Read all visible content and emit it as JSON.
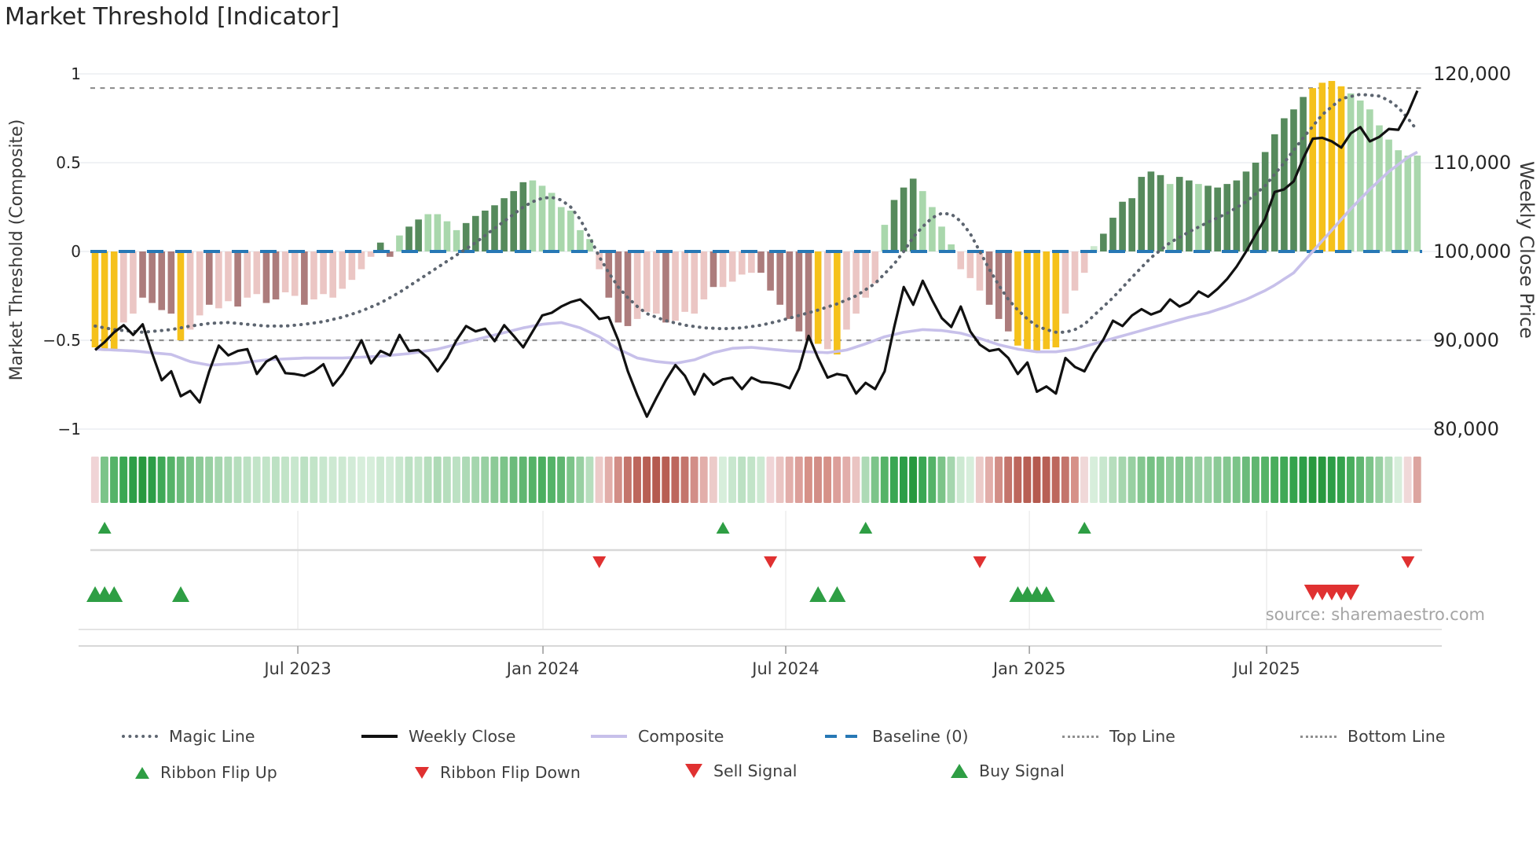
{
  "title": "Market Threshold [Indicator]",
  "source": "source: sharemaestro.com",
  "axes": {
    "left_label": "Market Threshold (Composite)",
    "right_label": "Weekly Close Price",
    "left_ticks": [
      "1",
      "0.5",
      "0",
      "−0.5",
      "−1"
    ],
    "left_tick_values": [
      1,
      0.5,
      0,
      -0.5,
      -1
    ],
    "right_ticks": [
      "120,000",
      "110,000",
      "100,000",
      "90,000",
      "80,000"
    ],
    "right_tick_values": [
      120000,
      110000,
      100000,
      90000,
      80000
    ],
    "x_ticks": [
      "Jul 2023",
      "Jan 2024",
      "Jul 2024",
      "Jan 2025",
      "Jul 2025"
    ],
    "x_tick_index": [
      21.31,
      47.08,
      72.6,
      98.21,
      123.15
    ]
  },
  "colors": {
    "gold": "#F5C11B",
    "pink": "#EBC6C4",
    "mauve": "#AC7C7C",
    "dark_green": "#568A5C",
    "light_green": "#A9D7AC",
    "pale_green": "#CBE8CD",
    "baseline": "#2778B5",
    "composite": "#C7C0EA",
    "magic_line": "#5D6570",
    "weekly_close": "#111111",
    "guide": "#8F8F8F",
    "signal_green": "#2E9E44",
    "signal_red": "#E03131",
    "grid": "#ECEEF2",
    "tick_text": "#262626",
    "x_text": "#3A3A3A",
    "panel_line": "#D8D8D8"
  },
  "chart_data": {
    "type": "combo-bar-line",
    "title": "Market Threshold [Indicator]",
    "left_axis_range": [
      -1,
      1
    ],
    "right_axis_range": [
      80000,
      120000
    ],
    "baseline": 0,
    "top_line": 0.92,
    "bottom_line": -0.5,
    "bar_classes": [
      "g",
      "g",
      "g",
      "p",
      "p",
      "m",
      "m",
      "m",
      "m",
      "g",
      "p",
      "p",
      "m",
      "p",
      "p",
      "m",
      "p",
      "p",
      "m",
      "m",
      "p",
      "p",
      "m",
      "p",
      "p",
      "p",
      "p",
      "p",
      "p",
      "p",
      "d",
      "m",
      "l",
      "d",
      "d",
      "l",
      "l",
      "l",
      "l",
      "d",
      "d",
      "d",
      "d",
      "d",
      "d",
      "d",
      "l",
      "l",
      "l",
      "l",
      "l",
      "l",
      "l",
      "p",
      "m",
      "m",
      "m",
      "p",
      "p",
      "p",
      "m",
      "p",
      "p",
      "p",
      "p",
      "m",
      "p",
      "p",
      "p",
      "p",
      "m",
      "m",
      "m",
      "m",
      "m",
      "m",
      "g",
      "p",
      "g",
      "p",
      "p",
      "p",
      "p",
      "l",
      "d",
      "d",
      "d",
      "l",
      "l",
      "l",
      "l",
      "p",
      "p",
      "p",
      "m",
      "m",
      "m",
      "g",
      "g",
      "g",
      "g",
      "g",
      "p",
      "p",
      "p",
      "e",
      "d",
      "d",
      "d",
      "d",
      "d",
      "d",
      "d",
      "l",
      "d",
      "d",
      "l",
      "d",
      "d",
      "d",
      "d",
      "d",
      "d",
      "d",
      "d",
      "d",
      "d",
      "d",
      "g",
      "g",
      "g",
      "g",
      "l",
      "l",
      "l",
      "l",
      "l",
      "l",
      "l",
      "l"
    ],
    "bar_values": [
      -0.54,
      -0.56,
      -0.55,
      -0.4,
      -0.35,
      -0.26,
      -0.29,
      -0.33,
      -0.35,
      -0.5,
      -0.44,
      -0.36,
      -0.3,
      -0.32,
      -0.28,
      -0.31,
      -0.26,
      -0.24,
      -0.29,
      -0.27,
      -0.23,
      -0.25,
      -0.3,
      -0.27,
      -0.24,
      -0.26,
      -0.21,
      -0.16,
      -0.1,
      -0.03,
      0.05,
      -0.03,
      0.09,
      0.14,
      0.18,
      0.21,
      0.21,
      0.17,
      0.12,
      0.16,
      0.2,
      0.23,
      0.26,
      0.3,
      0.34,
      0.39,
      0.4,
      0.37,
      0.33,
      0.25,
      0.23,
      0.12,
      0.07,
      -0.1,
      -0.26,
      -0.4,
      -0.42,
      -0.38,
      -0.34,
      -0.35,
      -0.4,
      -0.39,
      -0.34,
      -0.35,
      -0.27,
      -0.2,
      -0.2,
      -0.17,
      -0.13,
      -0.12,
      -0.12,
      -0.22,
      -0.3,
      -0.38,
      -0.45,
      -0.5,
      -0.52,
      -0.55,
      -0.58,
      -0.44,
      -0.35,
      -0.26,
      -0.18,
      0.15,
      0.29,
      0.36,
      0.41,
      0.34,
      0.25,
      0.14,
      0.04,
      -0.1,
      -0.15,
      -0.22,
      -0.3,
      -0.38,
      -0.45,
      -0.53,
      -0.55,
      -0.56,
      -0.55,
      -0.54,
      -0.35,
      -0.22,
      -0.12,
      0.03,
      0.1,
      0.19,
      0.28,
      0.3,
      0.42,
      0.45,
      0.43,
      0.38,
      0.42,
      0.4,
      0.38,
      0.37,
      0.36,
      0.38,
      0.4,
      0.45,
      0.5,
      0.56,
      0.66,
      0.75,
      0.8,
      0.87,
      0.92,
      0.95,
      0.96,
      0.93,
      0.89,
      0.85,
      0.8,
      0.71,
      0.63,
      0.57,
      0.54,
      0.54
    ],
    "weekly_close": [
      88900,
      89800,
      90900,
      91700,
      90600,
      91800,
      88500,
      85500,
      86500,
      83700,
      84300,
      83000,
      86500,
      89400,
      88300,
      88800,
      89000,
      86200,
      87600,
      88200,
      86300,
      86200,
      86000,
      86500,
      87300,
      84900,
      86200,
      88000,
      90000,
      87400,
      88800,
      88300,
      90600,
      88800,
      88900,
      88000,
      86500,
      88000,
      90000,
      91600,
      91000,
      91300,
      89900,
      91700,
      90500,
      89200,
      91000,
      92800,
      93100,
      93800,
      94300,
      94600,
      93600,
      92400,
      92600,
      90000,
      86500,
      83800,
      81400,
      83500,
      85500,
      87200,
      86000,
      83900,
      86200,
      85000,
      85600,
      85800,
      84500,
      85800,
      85300,
      85200,
      85000,
      84600,
      86800,
      90500,
      88000,
      85800,
      86200,
      86000,
      84000,
      85200,
      84500,
      86500,
      91500,
      96000,
      94000,
      96700,
      94500,
      92500,
      91500,
      93800,
      91000,
      89500,
      88800,
      89000,
      88000,
      86200,
      87500,
      84200,
      84800,
      84000,
      88000,
      87000,
      86500,
      88500,
      90100,
      92200,
      91600,
      92800,
      93500,
      92900,
      93300,
      94600,
      93800,
      94300,
      95500,
      94900,
      95800,
      96900,
      98300,
      100000,
      101900,
      103700,
      106700,
      107000,
      107900,
      110500,
      112700,
      112800,
      112400,
      111700,
      113300,
      114000,
      112400,
      112900,
      113800,
      113700,
      115600,
      118100
    ],
    "composite_anchors": [
      [
        0,
        -0.55
      ],
      [
        4,
        -0.56
      ],
      [
        8,
        -0.58
      ],
      [
        10,
        -0.62
      ],
      [
        12,
        -0.64
      ],
      [
        15,
        -0.63
      ],
      [
        18,
        -0.61
      ],
      [
        22,
        -0.6
      ],
      [
        26,
        -0.6
      ],
      [
        30,
        -0.59
      ],
      [
        33,
        -0.575
      ],
      [
        36,
        -0.55
      ],
      [
        39,
        -0.51
      ],
      [
        42,
        -0.47
      ],
      [
        45,
        -0.43
      ],
      [
        47,
        -0.41
      ],
      [
        49,
        -0.4
      ],
      [
        51,
        -0.43
      ],
      [
        53,
        -0.48
      ],
      [
        55,
        -0.55
      ],
      [
        57,
        -0.6
      ],
      [
        59,
        -0.62
      ],
      [
        61,
        -0.63
      ],
      [
        63,
        -0.61
      ],
      [
        65,
        -0.57
      ],
      [
        67,
        -0.545
      ],
      [
        69,
        -0.54
      ],
      [
        71,
        -0.55
      ],
      [
        73,
        -0.56
      ],
      [
        75,
        -0.565
      ],
      [
        77,
        -0.57
      ],
      [
        79,
        -0.555
      ],
      [
        81,
        -0.52
      ],
      [
        83,
        -0.48
      ],
      [
        85,
        -0.455
      ],
      [
        87,
        -0.44
      ],
      [
        89,
        -0.445
      ],
      [
        91,
        -0.46
      ],
      [
        93,
        -0.49
      ],
      [
        95,
        -0.525
      ],
      [
        97,
        -0.55
      ],
      [
        99,
        -0.565
      ],
      [
        101,
        -0.565
      ],
      [
        103,
        -0.55
      ],
      [
        105,
        -0.52
      ],
      [
        107,
        -0.49
      ],
      [
        109,
        -0.46
      ],
      [
        111,
        -0.43
      ],
      [
        113,
        -0.4
      ],
      [
        115,
        -0.37
      ],
      [
        117,
        -0.345
      ],
      [
        119,
        -0.31
      ],
      [
        121,
        -0.27
      ],
      [
        123,
        -0.22
      ],
      [
        124,
        -0.19
      ],
      [
        126,
        -0.12
      ],
      [
        128,
        0.0
      ],
      [
        130,
        0.12
      ],
      [
        132,
        0.24
      ],
      [
        134,
        0.35
      ],
      [
        136,
        0.45
      ],
      [
        138,
        0.53
      ],
      [
        139,
        0.56
      ]
    ],
    "magic_anchors": [
      [
        0,
        -0.42
      ],
      [
        2,
        -0.44
      ],
      [
        5,
        -0.455
      ],
      [
        8,
        -0.44
      ],
      [
        10,
        -0.42
      ],
      [
        12,
        -0.405
      ],
      [
        14,
        -0.4
      ],
      [
        16,
        -0.41
      ],
      [
        18,
        -0.42
      ],
      [
        20,
        -0.42
      ],
      [
        22,
        -0.41
      ],
      [
        24,
        -0.395
      ],
      [
        26,
        -0.37
      ],
      [
        28,
        -0.335
      ],
      [
        30,
        -0.29
      ],
      [
        32,
        -0.23
      ],
      [
        34,
        -0.16
      ],
      [
        36,
        -0.09
      ],
      [
        38,
        -0.02
      ],
      [
        40,
        0.05
      ],
      [
        42,
        0.13
      ],
      [
        44,
        0.21
      ],
      [
        45,
        0.25
      ],
      [
        46,
        0.28
      ],
      [
        47,
        0.3
      ],
      [
        48,
        0.305
      ],
      [
        49,
        0.29
      ],
      [
        50,
        0.25
      ],
      [
        51,
        0.18
      ],
      [
        52,
        0.08
      ],
      [
        53,
        -0.03
      ],
      [
        54,
        -0.12
      ],
      [
        55,
        -0.2
      ],
      [
        56,
        -0.26
      ],
      [
        57,
        -0.31
      ],
      [
        58,
        -0.35
      ],
      [
        60,
        -0.39
      ],
      [
        62,
        -0.415
      ],
      [
        64,
        -0.43
      ],
      [
        66,
        -0.435
      ],
      [
        68,
        -0.43
      ],
      [
        70,
        -0.415
      ],
      [
        72,
        -0.39
      ],
      [
        74,
        -0.36
      ],
      [
        76,
        -0.33
      ],
      [
        78,
        -0.295
      ],
      [
        80,
        -0.25
      ],
      [
        82,
        -0.18
      ],
      [
        84,
        -0.07
      ],
      [
        85,
        0.0
      ],
      [
        86,
        0.08
      ],
      [
        87,
        0.14
      ],
      [
        88,
        0.19
      ],
      [
        89,
        0.215
      ],
      [
        90,
        0.21
      ],
      [
        91,
        0.17
      ],
      [
        92,
        0.1
      ],
      [
        93,
        0.0
      ],
      [
        94,
        -0.1
      ],
      [
        95,
        -0.19
      ],
      [
        96,
        -0.27
      ],
      [
        97,
        -0.33
      ],
      [
        98,
        -0.38
      ],
      [
        99,
        -0.42
      ],
      [
        100,
        -0.44
      ],
      [
        101,
        -0.455
      ],
      [
        102,
        -0.455
      ],
      [
        103,
        -0.44
      ],
      [
        104,
        -0.41
      ],
      [
        105,
        -0.36
      ],
      [
        107,
        -0.26
      ],
      [
        109,
        -0.145
      ],
      [
        111,
        -0.035
      ],
      [
        113,
        0.05
      ],
      [
        115,
        0.11
      ],
      [
        117,
        0.165
      ],
      [
        119,
        0.215
      ],
      [
        121,
        0.28
      ],
      [
        123,
        0.37
      ],
      [
        125,
        0.5
      ],
      [
        127,
        0.64
      ],
      [
        129,
        0.77
      ],
      [
        131,
        0.86
      ],
      [
        133,
        0.885
      ],
      [
        135,
        0.875
      ],
      [
        136,
        0.85
      ],
      [
        137,
        0.81
      ],
      [
        138,
        0.75
      ],
      [
        139,
        0.68
      ]
    ],
    "ribbon_colors": [
      "#f0d4d6",
      "#7cc489",
      "#55b368",
      "#3aa753",
      "#2d9e47",
      "#28993f",
      "#2d9e47",
      "#3fa956",
      "#55b368",
      "#6bbb7b",
      "#7cc489",
      "#8cca97",
      "#98d0a2",
      "#a5d6ae",
      "#aedab6",
      "#b6debd",
      "#bce1c3",
      "#c2e4c8",
      "#c2e4c8",
      "#bce1c3",
      "#c2e4c8",
      "#c8e7ce",
      "#bce1c3",
      "#c2e4c8",
      "#c8e7ce",
      "#cde9d2",
      "#cde9d2",
      "#d2ebd7",
      "#d7eedb",
      "#d7eedb",
      "#cde9d2",
      "#d2ebd7",
      "#c8e7ce",
      "#bce1c3",
      "#c2e4c8",
      "#b6debd",
      "#aedab6",
      "#b6debd",
      "#bce1c3",
      "#aedab6",
      "#a5d6ae",
      "#98d0a2",
      "#8cca97",
      "#7cc489",
      "#6bbb7b",
      "#60b671",
      "#55b368",
      "#4caf60",
      "#55b368",
      "#60b671",
      "#7cc489",
      "#98d0a2",
      "#b6debd",
      "#eccbc9",
      "#e2aeaa",
      "#d28e87",
      "#c4756c",
      "#bd675d",
      "#b85f54",
      "#b55a4f",
      "#b85f54",
      "#bd675d",
      "#c4756c",
      "#d28e87",
      "#e2aeaa",
      "#eccbc9",
      "#d7eedb",
      "#c8e7ce",
      "#bce1c3",
      "#c2e4c8",
      "#cde9d2",
      "#f0d4d6",
      "#eac4c2",
      "#e2aeaa",
      "#dc9f9a",
      "#d69188",
      "#d28e87",
      "#d69188",
      "#dc9f9a",
      "#e2aeaa",
      "#eac4c2",
      "#aedab6",
      "#7cc489",
      "#55b368",
      "#3aa753",
      "#2d9e47",
      "#28993f",
      "#3aa753",
      "#55b368",
      "#7cc489",
      "#a5d6ae",
      "#cde9d2",
      "#d7eedb",
      "#eccbc9",
      "#e2aeaa",
      "#d28e87",
      "#c4756c",
      "#bd675d",
      "#b85f54",
      "#b55a4f",
      "#b85f54",
      "#bd675d",
      "#c4756c",
      "#d69188",
      "#f0d8d8",
      "#d7eedb",
      "#c8e7ce",
      "#b6debd",
      "#a5d6ae",
      "#98d0a2",
      "#84c790",
      "#76c184",
      "#7cc489",
      "#8cca97",
      "#84c790",
      "#8cca97",
      "#98d0a2",
      "#98d0a2",
      "#8cca97",
      "#84c790",
      "#7cc489",
      "#6bbb7b",
      "#60b671",
      "#55b368",
      "#49ad5d",
      "#3fa956",
      "#35a34d",
      "#2d9e47",
      "#28993f",
      "#28993f",
      "#2d9e47",
      "#35a34d",
      "#49ad5d",
      "#60b671",
      "#7cc489",
      "#98d0a2",
      "#b6debd",
      "#d7eedb",
      "#f0d8d8",
      "#dca49f"
    ],
    "signals": {
      "ribbon_flip_up": [
        1,
        66,
        81,
        104
      ],
      "ribbon_flip_down": [
        53,
        71,
        93,
        138
      ],
      "buy": [
        0,
        1,
        2,
        9,
        76,
        78,
        97,
        98,
        99,
        100
      ],
      "sell": [
        128,
        129,
        130,
        131,
        132
      ]
    }
  },
  "legend": {
    "row1": [
      {
        "label": "Magic Line"
      },
      {
        "label": "Weekly Close"
      },
      {
        "label": "Composite"
      },
      {
        "label": "Baseline (0)"
      },
      {
        "label": "Top Line"
      },
      {
        "label": "Bottom Line"
      }
    ],
    "row2": [
      {
        "label": "Ribbon Flip Up"
      },
      {
        "label": "Ribbon Flip Down"
      },
      {
        "label": "Sell Signal"
      },
      {
        "label": "Buy Signal"
      }
    ]
  }
}
